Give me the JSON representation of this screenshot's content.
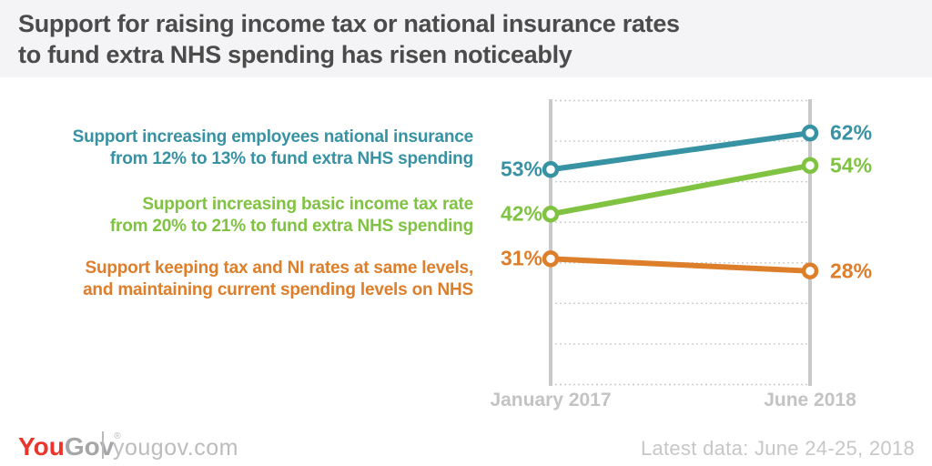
{
  "title": {
    "line1": "Support for raising income tax or national insurance rates",
    "line2": "to fund extra NHS spending has risen noticeably"
  },
  "chart_data": {
    "type": "line",
    "x": [
      "January 2017",
      "June 2018"
    ],
    "series": [
      {
        "name": "increase-national-insurance",
        "label_lines": [
          "Support increasing employees national insurance",
          "from 12% to 13% to fund extra NHS spending"
        ],
        "values": [
          53,
          62
        ],
        "color": "#3792a4"
      },
      {
        "name": "increase-income-tax",
        "label_lines": [
          "Support increasing basic income tax rate",
          "from 20% to 21% to fund extra NHS spending"
        ],
        "values": [
          42,
          54
        ],
        "color": "#80c342"
      },
      {
        "name": "keep-rates-same",
        "label_lines": [
          "Support keeping tax and NI rates at same levels,",
          "and maintaining current spending levels on NHS"
        ],
        "values": [
          31,
          28
        ],
        "color": "#dd7e2b"
      }
    ],
    "ylim": [
      0,
      70
    ],
    "grid_step": 10,
    "grid": "horizontal-dotted",
    "legend_position": "left-of-chart",
    "value_suffix": "%",
    "xlabel": "",
    "ylabel": ""
  },
  "footer": {
    "logo": {
      "you": "You",
      "gov": "Gov",
      "mark": "®"
    },
    "website": "yougov.com",
    "latest_data": "Latest data: June 24-25, 2018"
  },
  "colors": {
    "header_bg": "#f4f4f6",
    "title_text": "#4b4b4b",
    "axis_line": "#c9c9c9",
    "gridline": "#cdcdcd",
    "axis_label": "#c3c3c5",
    "teal": "#3792a4",
    "green": "#80c342",
    "orange": "#dd7e2b",
    "logo_red": "#e9352b",
    "logo_gray": "#a6a6a8",
    "muted_text": "#c7c7c9"
  }
}
